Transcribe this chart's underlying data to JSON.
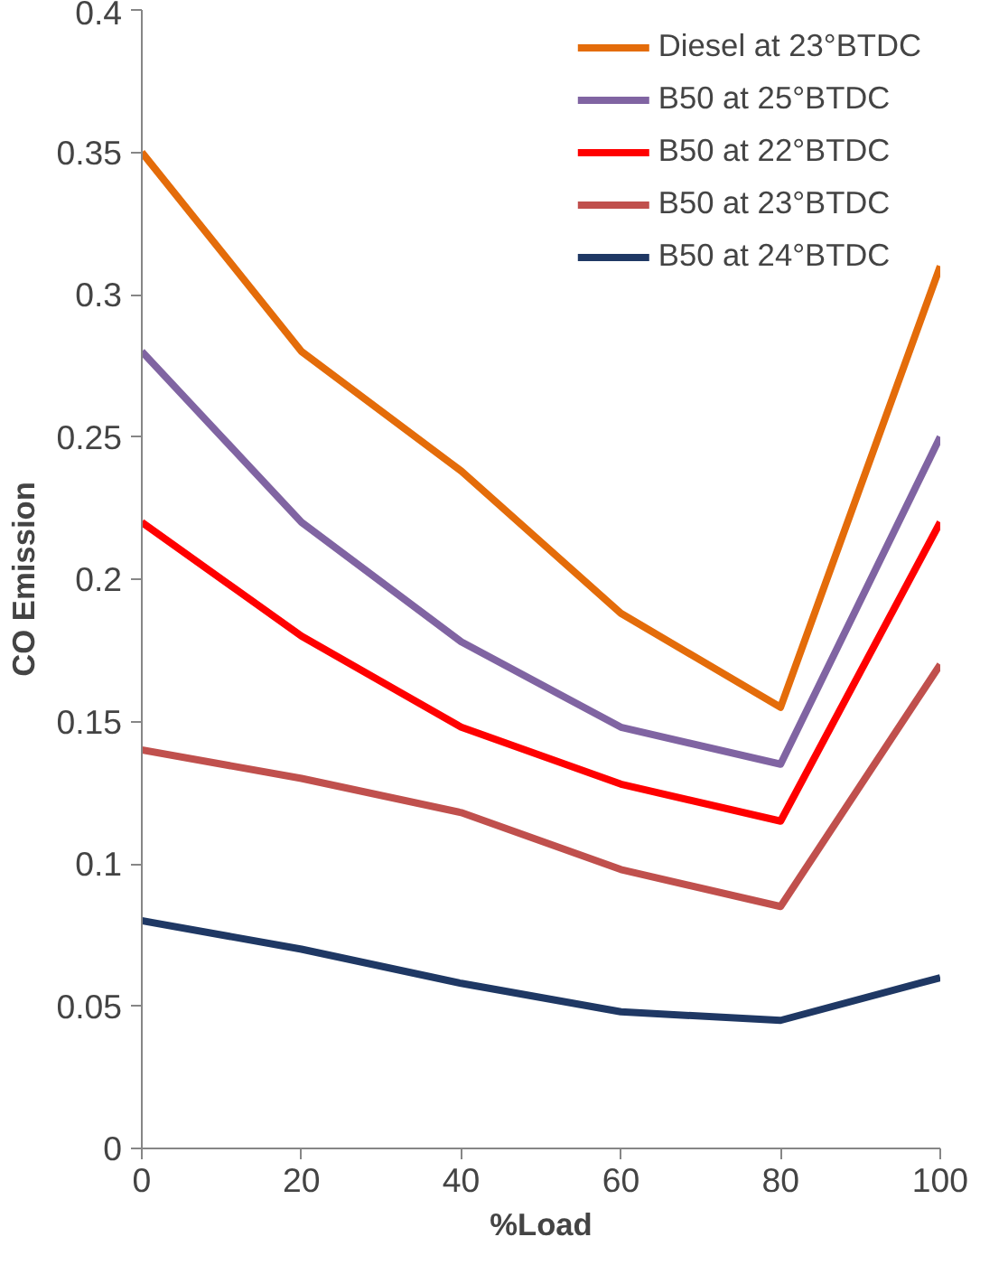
{
  "chart_data": {
    "type": "line",
    "xlabel": "%Load",
    "ylabel": "CO Emission",
    "x": [
      0,
      20,
      40,
      60,
      80,
      100
    ],
    "xlim": [
      0,
      100
    ],
    "xticks": [
      0,
      20,
      40,
      60,
      80,
      100
    ],
    "ylim": [
      0,
      0.4
    ],
    "yticks": [
      0,
      0.05,
      0.1,
      0.15,
      0.2,
      0.25,
      0.3,
      0.35,
      0.4
    ],
    "grid": false,
    "legend": "top right",
    "marker": "none",
    "line_style": "solid",
    "series": [
      {
        "name": "Diesel at 23°BTDC",
        "color": "#e46c0a",
        "values": [
          0.35,
          0.28,
          0.238,
          0.188,
          0.155,
          0.31
        ]
      },
      {
        "name": "B50 at 25°BTDC",
        "color": "#8064a2",
        "values": [
          0.28,
          0.22,
          0.178,
          0.148,
          0.135,
          0.25
        ]
      },
      {
        "name": "B50 at 22°BTDC",
        "color": "#ff0000",
        "values": [
          0.22,
          0.18,
          0.148,
          0.128,
          0.115,
          0.22
        ]
      },
      {
        "name": "B50 at 23°BTDC",
        "color": "#c0504d",
        "values": [
          0.14,
          0.13,
          0.118,
          0.098,
          0.085,
          0.17
        ]
      },
      {
        "name": "B50 at 24°BTDC",
        "color": "#1f3864",
        "values": [
          0.08,
          0.07,
          0.058,
          0.048,
          0.045,
          0.06
        ]
      }
    ]
  }
}
